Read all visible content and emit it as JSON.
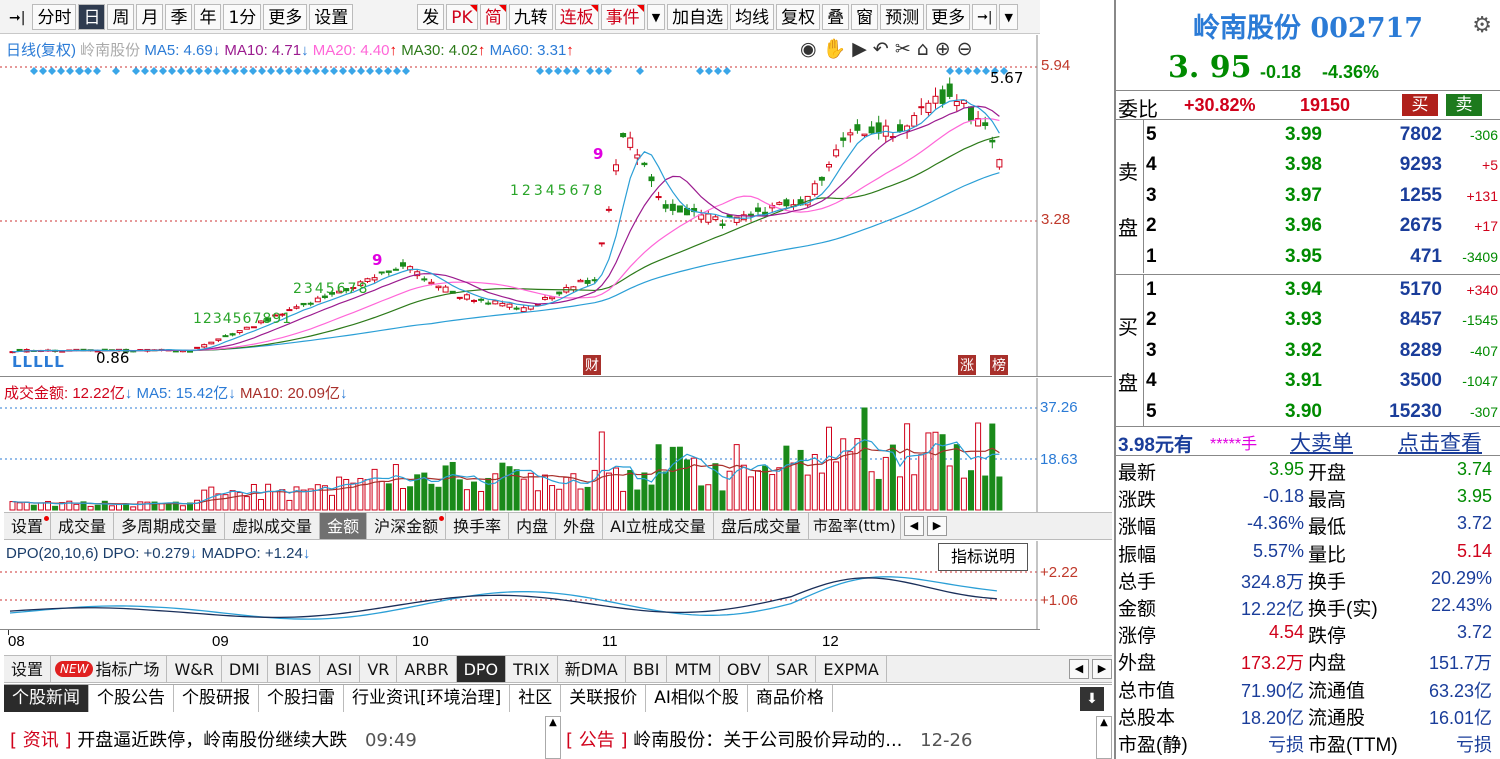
{
  "toolbar": {
    "left": [
      "分时",
      "日",
      "周",
      "月",
      "季",
      "年",
      "1分",
      "更多",
      "设置"
    ],
    "right": [
      "发",
      "PK",
      "简",
      "九转",
      "连板",
      "事件",
      "加自选",
      "均线",
      "复权",
      "叠",
      "窗",
      "预测",
      "更多"
    ]
  },
  "kline": {
    "legend_title": "日线(复权)",
    "legend_name": "岭南股份",
    "ma5": "MA5: 4.69",
    "ma10": "MA10: 4.71",
    "ma20": "MA20: 4.40",
    "ma30": "MA30: 4.02",
    "ma60": "MA60: 3.31",
    "axis_top": "5.94",
    "axis_mid": "3.28",
    "high_mark": "5.67",
    "low_mark": "0.86",
    "nine_a": "9",
    "nine_b": "9",
    "nine_c": "9",
    "cai_label": "财",
    "zhang_label": "涨",
    "bang_label": "榜",
    "llll": "LLLLL",
    "seq_a": "1234567891",
    "seq_b": "2345678",
    "seq_c": "12345678"
  },
  "volume": {
    "legend": "成交金额: 12.22亿",
    "ma5": "MA5: 15.42亿",
    "ma10": "MA10: 20.09亿",
    "axis_top": "37.26",
    "axis_mid": "18.63"
  },
  "tabs1": {
    "items": [
      "设置",
      "成交量",
      "多周期成交量",
      "虚拟成交量",
      "金额",
      "沪深金额",
      "换手率",
      "内盘",
      "外盘",
      "AI立桩成交量",
      "盘后成交量",
      "市盈率(ttm)"
    ]
  },
  "tooltip": "指标说明",
  "dpo": {
    "legend": "DPO(20,10,6) DPO: +0.279",
    "madpo": "MADPO: +1.24",
    "axis_top": "+2.22",
    "axis_mid": "+1.06"
  },
  "xaxis": [
    "08",
    "09",
    "10",
    "11",
    "12"
  ],
  "tabs2": {
    "settings": "设置",
    "new_badge": "NEW",
    "items": [
      "指标广场",
      "W&R",
      "DMI",
      "BIAS",
      "ASI",
      "VR",
      "ARBR",
      "DPO",
      "TRIX",
      "新DMA",
      "BBI",
      "MTM",
      "OBV",
      "SAR",
      "EXPMA"
    ]
  },
  "news": {
    "tabs": [
      "个股新闻",
      "个股公告",
      "个股研报",
      "个股扫雷",
      "行业资讯[环境治理]",
      "社区",
      "关联报价",
      "AI相似个股",
      "商品价格"
    ],
    "item1_tag": "资讯",
    "item1_text": "开盘逼近跌停，岭南股份继续大跌",
    "item1_time": "09:49",
    "item2_tag": "公告",
    "item2_text": "岭南股份：关于公司股价异动的...",
    "item2_time": "12-26"
  },
  "quote": {
    "title": "岭南股份 002717",
    "price": "3. 95",
    "change": "-0.18",
    "pct": "-4.36%",
    "weibi_label": "委比",
    "weibi": "+30.82%",
    "weicha": "19150",
    "buy_btn": "买",
    "sell_btn": "卖",
    "sell_label": [
      "卖",
      "盘"
    ],
    "buy_label": [
      "买",
      "盘"
    ],
    "asks": [
      {
        "lv": "5",
        "p": "3.99",
        "v": "7802",
        "d": "-306"
      },
      {
        "lv": "4",
        "p": "3.98",
        "v": "9293",
        "d": "+5"
      },
      {
        "lv": "3",
        "p": "3.97",
        "v": "1255",
        "d": "+131"
      },
      {
        "lv": "2",
        "p": "3.96",
        "v": "2675",
        "d": "+17"
      },
      {
        "lv": "1",
        "p": "3.95",
        "v": "471",
        "d": "-3409"
      }
    ],
    "bids": [
      {
        "lv": "1",
        "p": "3.94",
        "v": "5170",
        "d": "+340"
      },
      {
        "lv": "2",
        "p": "3.93",
        "v": "8457",
        "d": "-1545"
      },
      {
        "lv": "3",
        "p": "3.92",
        "v": "8289",
        "d": "-407"
      },
      {
        "lv": "4",
        "p": "3.91",
        "v": "3500",
        "d": "-1047"
      },
      {
        "lv": "5",
        "p": "3.90",
        "v": "15230",
        "d": "-307"
      }
    ],
    "bigorder": {
      "price": "3.98元有",
      "stars": "*****手",
      "link1": "大卖单",
      "link2": "点击查看"
    },
    "stats": [
      {
        "l1": "最新",
        "v1": "3.95",
        "l2": "开盘",
        "v2": "3.74"
      },
      {
        "l1": "涨跌",
        "v1": "-0.18",
        "l2": "最高",
        "v2": "3.95"
      },
      {
        "l1": "涨幅",
        "v1": "-4.36%",
        "l2": "最低",
        "v2": "3.72"
      },
      {
        "l1": "振幅",
        "v1": "5.57%",
        "l2": "量比",
        "v2": "5.14"
      },
      {
        "l1": "总手",
        "v1": "324.8万",
        "l2": "换手",
        "v2": "20.29%"
      },
      {
        "l1": "金额",
        "v1": "12.22亿",
        "l2": "换手(实)",
        "v2": "22.43%"
      },
      {
        "l1": "涨停",
        "v1": "4.54",
        "l2": "跌停",
        "v2": "3.72"
      },
      {
        "l1": "外盘",
        "v1": "173.2万",
        "l2": "内盘",
        "v2": "151.7万"
      },
      {
        "l1": "总市值",
        "v1": "71.90亿",
        "l2": "流通值",
        "v2": "63.23亿"
      },
      {
        "l1": "总股本",
        "v1": "18.20亿",
        "l2": "流通股",
        "v2": "16.01亿"
      },
      {
        "l1": "市盈(静)",
        "v1": "亏损",
        "l2": "市盈(TTM)",
        "v2": "亏损"
      }
    ]
  }
}
